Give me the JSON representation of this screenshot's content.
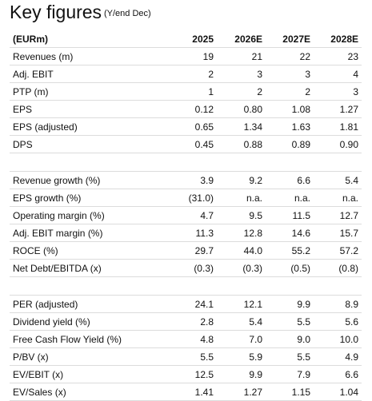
{
  "title": "Key figures",
  "subtitle": "(Y/end Dec)",
  "table": {
    "header": [
      "(EURm)",
      "2025",
      "2026E",
      "2027E",
      "2028E"
    ],
    "groups": [
      {
        "rows": [
          [
            "Revenues (m)",
            "19",
            "21",
            "22",
            "23"
          ],
          [
            "Adj. EBIT",
            "2",
            "3",
            "3",
            "4"
          ],
          [
            "PTP (m)",
            "1",
            "2",
            "2",
            "3"
          ],
          [
            "EPS",
            "0.12",
            "0.80",
            "1.08",
            "1.27"
          ],
          [
            "EPS (adjusted)",
            "0.65",
            "1.34",
            "1.63",
            "1.81"
          ],
          [
            "DPS",
            "0.45",
            "0.88",
            "0.89",
            "0.90"
          ]
        ]
      },
      {
        "rows": [
          [
            "Revenue growth (%)",
            "3.9",
            "9.2",
            "6.6",
            "5.4"
          ],
          [
            "EPS growth (%)",
            "(31.0)",
            "n.a.",
            "n.a.",
            "n.a."
          ],
          [
            "Operating margin (%)",
            "4.7",
            "9.5",
            "11.5",
            "12.7"
          ],
          [
            "Adj. EBIT margin (%)",
            "11.3",
            "12.8",
            "14.6",
            "15.7"
          ],
          [
            "ROCE (%)",
            "29.7",
            "44.0",
            "55.2",
            "57.2"
          ],
          [
            "Net Debt/EBITDA (x)",
            "(0.3)",
            "(0.3)",
            "(0.5)",
            "(0.8)"
          ]
        ]
      },
      {
        "rows": [
          [
            "PER (adjusted)",
            "24.1",
            "12.1",
            "9.9",
            "8.9"
          ],
          [
            "Dividend yield (%)",
            "2.8",
            "5.4",
            "5.5",
            "5.6"
          ],
          [
            "Free Cash Flow Yield (%)",
            "4.8",
            "7.0",
            "9.0",
            "10.0"
          ],
          [
            "P/BV (x)",
            "5.5",
            "5.9",
            "5.5",
            "4.9"
          ],
          [
            "EV/EBIT (x)",
            "12.5",
            "9.9",
            "7.9",
            "6.6"
          ],
          [
            "EV/Sales (x)",
            "1.41",
            "1.27",
            "1.15",
            "1.04"
          ]
        ]
      }
    ]
  }
}
